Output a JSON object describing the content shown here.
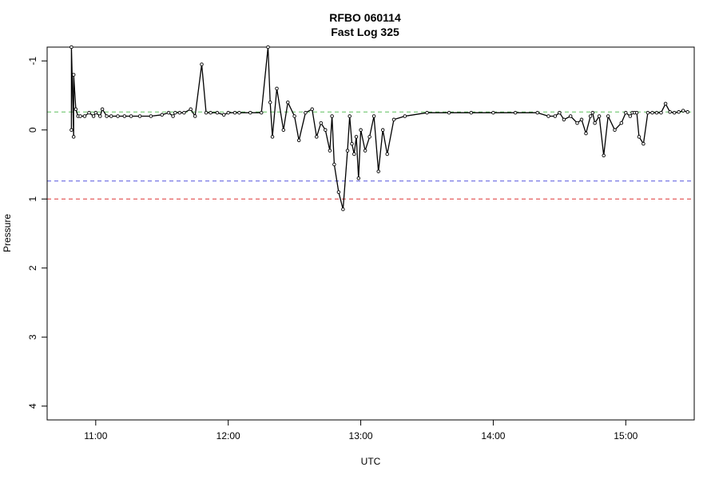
{
  "chart_data": {
    "type": "line",
    "title": "RFBO 060114",
    "subtitle": "Fast Log 325",
    "xlabel": "UTC",
    "ylabel": "Pressure",
    "y_reversed": true,
    "xlim": [
      "10:38",
      "15:31"
    ],
    "ylim": [
      4.2,
      -1.2
    ],
    "x_ticks": [
      "11:00",
      "12:00",
      "13:00",
      "14:00",
      "15:00"
    ],
    "y_ticks": [
      -1,
      0,
      1,
      2,
      3,
      4
    ],
    "grid": false,
    "legend": "none",
    "reference_lines": [
      {
        "y": -0.26,
        "color": "#5fbf5f",
        "style": "dashed"
      },
      {
        "y": 0.74,
        "color": "#5555dd",
        "style": "dashed"
      },
      {
        "y": 1.0,
        "color": "#dd3333",
        "style": "dashed"
      }
    ],
    "series": [
      {
        "x": [
          "10:49",
          "10:49",
          "10:50",
          "10:50",
          "10:51",
          "10:52",
          "10:53",
          "10:55",
          "10:57",
          "10:59",
          "11:00",
          "11:02",
          "11:03",
          "11:05",
          "11:07",
          "11:10",
          "11:13",
          "11:16",
          "11:20",
          "11:25",
          "11:30",
          "11:33",
          "11:35",
          "11:36",
          "11:38",
          "11:40",
          "11:43",
          "11:45",
          "11:48",
          "11:50",
          "11:52",
          "11:55",
          "11:58",
          "12:00",
          "12:03",
          "12:05",
          "12:10",
          "12:15",
          "12:18",
          "12:19",
          "12:20",
          "12:22",
          "12:25",
          "12:27",
          "12:30",
          "12:32",
          "12:35",
          "12:38",
          "12:40",
          "12:42",
          "12:44",
          "12:46",
          "12:47",
          "12:48",
          "12:50",
          "12:52",
          "12:54",
          "12:55",
          "12:56",
          "12:57",
          "12:58",
          "12:59",
          "13:00",
          "13:02",
          "13:04",
          "13:06",
          "13:08",
          "13:10",
          "13:12",
          "13:15",
          "13:20",
          "13:30",
          "13:40",
          "13:50",
          "14:00",
          "14:10",
          "14:20",
          "14:25",
          "14:28",
          "14:30",
          "14:32",
          "14:35",
          "14:38",
          "14:40",
          "14:42",
          "14:44",
          "14:45",
          "14:46",
          "14:48",
          "14:50",
          "14:52",
          "14:55",
          "14:58",
          "15:00",
          "15:02",
          "15:03",
          "15:04",
          "15:05",
          "15:06",
          "15:08",
          "15:10",
          "15:12",
          "15:14",
          "15:16",
          "15:18",
          "15:20",
          "15:22",
          "15:24",
          "15:26",
          "15:28"
        ],
        "y": [
          0.0,
          -1.2,
          0.1,
          -0.8,
          -0.3,
          -0.2,
          -0.2,
          -0.2,
          -0.25,
          -0.2,
          -0.25,
          -0.2,
          -0.3,
          -0.2,
          -0.2,
          -0.2,
          -0.2,
          -0.2,
          -0.2,
          -0.2,
          -0.22,
          -0.25,
          -0.2,
          -0.25,
          -0.25,
          -0.25,
          -0.3,
          -0.2,
          -0.95,
          -0.25,
          -0.25,
          -0.25,
          -0.22,
          -0.25,
          -0.25,
          -0.25,
          -0.25,
          -0.25,
          -1.2,
          -0.4,
          0.1,
          -0.6,
          0.0,
          -0.4,
          -0.2,
          0.15,
          -0.25,
          -0.3,
          0.1,
          -0.1,
          0.0,
          0.3,
          -0.2,
          0.5,
          0.9,
          1.15,
          0.3,
          -0.2,
          0.2,
          0.35,
          0.1,
          0.7,
          0.0,
          0.3,
          0.1,
          -0.2,
          0.6,
          0.0,
          0.35,
          -0.15,
          -0.2,
          -0.25,
          -0.25,
          -0.25,
          -0.25,
          -0.25,
          -0.25,
          -0.2,
          -0.2,
          -0.25,
          -0.15,
          -0.2,
          -0.1,
          -0.15,
          0.05,
          -0.2,
          -0.25,
          -0.1,
          -0.2,
          0.37,
          -0.2,
          0.0,
          -0.1,
          -0.25,
          -0.2,
          -0.25,
          -0.25,
          -0.25,
          0.1,
          0.2,
          -0.25,
          -0.25,
          -0.25,
          -0.25,
          -0.38,
          -0.26,
          -0.25,
          -0.26,
          -0.28,
          -0.26
        ]
      }
    ]
  }
}
